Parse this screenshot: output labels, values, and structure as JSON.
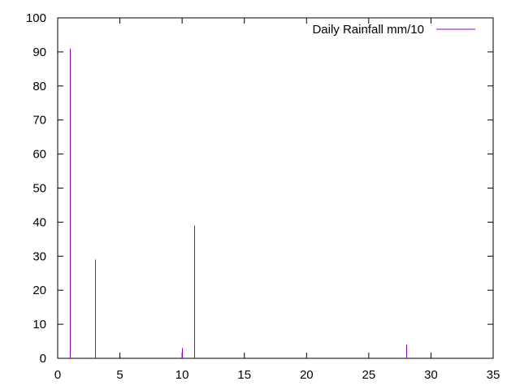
{
  "chart_data": {
    "type": "impulse",
    "title": "",
    "xlabel": "",
    "ylabel": "",
    "xlim": [
      0,
      35
    ],
    "ylim": [
      0,
      100
    ],
    "x_ticks": [
      0,
      5,
      10,
      15,
      20,
      25,
      30,
      35
    ],
    "y_ticks": [
      0,
      10,
      20,
      30,
      40,
      50,
      60,
      70,
      80,
      90,
      100
    ],
    "grid": false,
    "legend_position": "top-right",
    "series": [
      {
        "name": "Daily Rainfall mm/10",
        "color": "#9400d3",
        "points": [
          {
            "x": 1,
            "y": 91
          },
          {
            "x": 3,
            "y": 29
          },
          {
            "x": 10,
            "y": 3
          },
          {
            "x": 11,
            "y": 39
          },
          {
            "x": 28,
            "y": 4
          }
        ]
      }
    ]
  }
}
